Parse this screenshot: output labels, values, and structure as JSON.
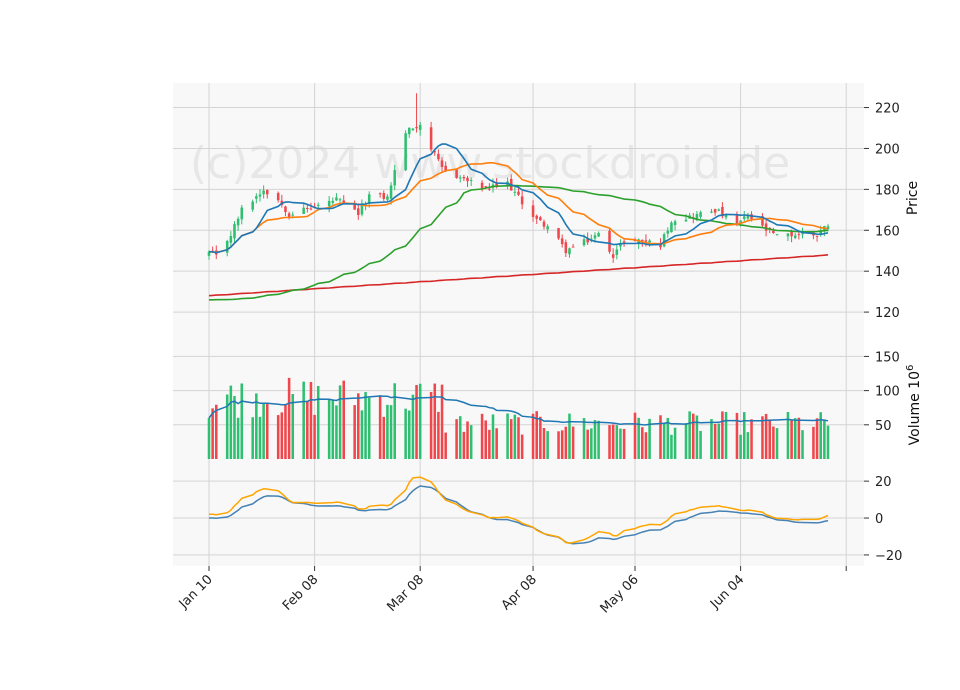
{
  "watermark": "(c)2024 www.stockdroid.de",
  "colors": {
    "up": "#2fbf71",
    "down": "#f0474d",
    "ma_short": "#1f77b4",
    "ma_medium": "#ff7f0e",
    "ma_long": "#2ca02c",
    "ma_very_long": "#d62728",
    "vol_ma": "#1f77b4",
    "osc_main": "#4682b4",
    "osc_signal": "#ffa500",
    "grid": "#d4d4d4",
    "panel": "#f8f8f8"
  },
  "chart_data": [
    {
      "id": "price",
      "type": "candlestick",
      "ylabel": "Price",
      "ylim": [
        100,
        232
      ],
      "yticks": [
        120,
        140,
        160,
        180,
        200,
        220
      ],
      "x_start": "2024-01-10",
      "x_end": "2024-06-28",
      "xtick_dates": [
        "2024-01-10",
        "2024-02-08",
        "2024-03-08",
        "2024-04-08",
        "2024-05-06",
        "2024-06-04",
        "2024-07-03"
      ],
      "xtick_labels": [
        "Jan 10",
        "Feb 08",
        "Mar 08",
        "Apr 08",
        "May 06",
        "Jun 04",
        ""
      ],
      "grid": true,
      "close_keypoints": [
        [
          "2024-01-10",
          149
        ],
        [
          "2024-01-12",
          147
        ],
        [
          "2024-01-16",
          158
        ],
        [
          "2024-01-19",
          170
        ],
        [
          "2024-01-25",
          180
        ],
        [
          "2024-01-29",
          175
        ],
        [
          "2024-02-01",
          168
        ],
        [
          "2024-02-05",
          170
        ],
        [
          "2024-02-09",
          172
        ],
        [
          "2024-02-14",
          175
        ],
        [
          "2024-02-20",
          168
        ],
        [
          "2024-02-23",
          177
        ],
        [
          "2024-02-28",
          176
        ],
        [
          "2024-03-04",
          208
        ],
        [
          "2024-03-08",
          212
        ],
        [
          "2024-03-11",
          200
        ],
        [
          "2024-03-14",
          190
        ],
        [
          "2024-03-20",
          185
        ],
        [
          "2024-03-26",
          180
        ],
        [
          "2024-04-01",
          183
        ],
        [
          "2024-04-04",
          176
        ],
        [
          "2024-04-09",
          165
        ],
        [
          "2024-04-12",
          162
        ],
        [
          "2024-04-17",
          150
        ],
        [
          "2024-04-23",
          155
        ],
        [
          "2024-04-26",
          158
        ],
        [
          "2024-04-30",
          148
        ],
        [
          "2024-05-03",
          155
        ],
        [
          "2024-05-08",
          155
        ],
        [
          "2024-05-13",
          153
        ],
        [
          "2024-05-16",
          165
        ],
        [
          "2024-05-22",
          167
        ],
        [
          "2024-05-28",
          170
        ],
        [
          "2024-06-03",
          163
        ],
        [
          "2024-06-06",
          167
        ],
        [
          "2024-06-11",
          160
        ],
        [
          "2024-06-14",
          157
        ],
        [
          "2024-06-20",
          158
        ],
        [
          "2024-06-25",
          158
        ],
        [
          "2024-06-28",
          163
        ]
      ],
      "series": [
        {
          "key": "ma_short",
          "period": 10
        },
        {
          "key": "ma_medium",
          "period": 20
        },
        {
          "key": "ma_long",
          "period": 50
        },
        {
          "key": "ma_very_long",
          "period": 200
        }
      ]
    },
    {
      "id": "volume",
      "type": "bar",
      "ylabel": "Volume",
      "ylabel_exponent": "6",
      "ylim": [
        0,
        155
      ],
      "yticks": [
        50,
        100,
        150
      ],
      "grid": true,
      "ma_period": 20
    },
    {
      "id": "oscillator",
      "type": "line",
      "ylim": [
        -26,
        32
      ],
      "yticks": [
        -20,
        0,
        20
      ],
      "grid": true,
      "series": [
        {
          "key": "osc_main"
        },
        {
          "key": "osc_signal"
        }
      ]
    }
  ]
}
